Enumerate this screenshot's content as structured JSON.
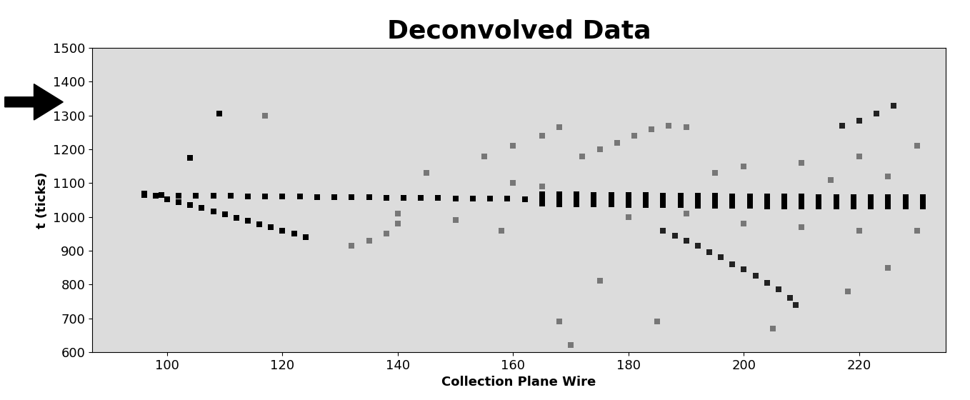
{
  "chart_data": {
    "type": "scatter",
    "title": "Deconvolved Data",
    "x_label": "Collection Plane Wire",
    "y_label": "t (ticks)",
    "xlim": [
      87,
      235
    ],
    "xticks": [
      100,
      120,
      140,
      160,
      180,
      200,
      220
    ],
    "ylim": [
      600,
      1500
    ],
    "yticks": [
      600,
      700,
      800,
      900,
      1000,
      1100,
      1200,
      1300,
      1400,
      1500
    ],
    "grid": false,
    "series": [
      {
        "color": "#000000",
        "marker": "s",
        "x": [
          96,
          99,
          102,
          105,
          108,
          111,
          114,
          117,
          120,
          123,
          126,
          129,
          132,
          135,
          138,
          141,
          144,
          147,
          150,
          153,
          156,
          159,
          162,
          165,
          168,
          171,
          174,
          177,
          180,
          183,
          186,
          189,
          192,
          195,
          198,
          201,
          204,
          207,
          210,
          213,
          216,
          219,
          222,
          225,
          228,
          231
        ],
        "y": [
          1065,
          1064,
          1063,
          1063,
          1062,
          1062,
          1061,
          1061,
          1060,
          1060,
          1059,
          1059,
          1058,
          1058,
          1057,
          1057,
          1056,
          1056,
          1055,
          1055,
          1054,
          1054,
          1053,
          1053,
          1052,
          1052,
          1051,
          1051,
          1050,
          1050,
          1049,
          1049,
          1048,
          1048,
          1047,
          1047,
          1046,
          1046,
          1046,
          1045,
          1045,
          1045,
          1045,
          1045,
          1045,
          1045
        ]
      },
      {
        "color": "#000000",
        "marker": "s",
        "x": [
          165,
          168,
          171,
          174,
          177,
          180,
          183,
          186,
          189,
          192,
          195,
          198,
          201,
          204,
          207,
          210,
          213,
          216,
          219,
          222,
          225,
          228,
          231
        ],
        "y": [
          1067,
          1066,
          1066,
          1065,
          1065,
          1064,
          1064,
          1063,
          1063,
          1062,
          1062,
          1061,
          1061,
          1060,
          1060,
          1060,
          1059,
          1059,
          1059,
          1059,
          1059,
          1059,
          1059
        ]
      },
      {
        "color": "#000000",
        "marker": "s",
        "x": [
          165,
          168,
          171,
          174,
          177,
          180,
          183,
          186,
          189,
          192,
          195,
          198,
          201,
          204,
          207,
          210,
          213,
          216,
          219,
          222,
          225,
          228,
          231
        ],
        "y": [
          1039,
          1038,
          1038,
          1037,
          1037,
          1036,
          1036,
          1035,
          1035,
          1034,
          1034,
          1033,
          1033,
          1032,
          1032,
          1032,
          1031,
          1031,
          1031,
          1031,
          1031,
          1031,
          1031
        ]
      },
      {
        "color": "#000000",
        "marker": "s",
        "x": [
          96,
          98,
          100,
          102,
          104,
          106,
          108,
          110,
          112,
          114,
          116,
          118,
          120,
          122,
          124,
          109,
          104
        ],
        "y": [
          1070,
          1062,
          1053,
          1044,
          1035,
          1026,
          1017,
          1008,
          998,
          989,
          979,
          969,
          959,
          950,
          940,
          1305,
          1175
        ]
      },
      {
        "color": "#222222",
        "marker": "s",
        "x": [
          186,
          188,
          190,
          192,
          194,
          196,
          198,
          200,
          202,
          204,
          206,
          208,
          209,
          217,
          220,
          223,
          226
        ],
        "y": [
          960,
          945,
          930,
          915,
          895,
          880,
          860,
          845,
          825,
          805,
          785,
          760,
          740,
          1270,
          1285,
          1305,
          1330
        ]
      },
      {
        "color": "#777777",
        "marker": "s",
        "x": [
          117,
          172,
          175,
          178,
          181,
          184,
          187,
          190,
          155,
          160,
          165,
          168,
          132,
          135,
          138,
          140,
          175,
          185,
          205,
          218,
          225,
          168,
          170,
          200,
          210,
          220,
          230,
          195,
          215,
          225,
          180,
          190,
          200,
          210,
          220,
          230,
          160,
          165,
          150,
          140,
          145,
          158
        ],
        "y": [
          1300,
          1180,
          1200,
          1220,
          1240,
          1260,
          1270,
          1265,
          1180,
          1210,
          1240,
          1265,
          915,
          930,
          950,
          980,
          810,
          690,
          670,
          780,
          850,
          690,
          620,
          1150,
          1160,
          1180,
          1210,
          1130,
          1110,
          1120,
          1000,
          1010,
          980,
          970,
          960,
          960,
          1100,
          1090,
          990,
          1010,
          1130,
          960
        ]
      }
    ]
  }
}
